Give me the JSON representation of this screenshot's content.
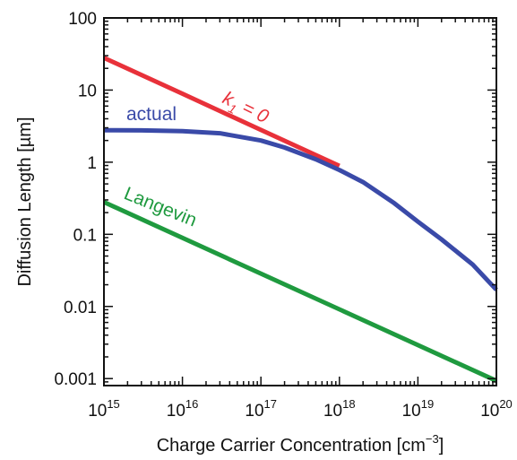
{
  "chart_data": {
    "type": "line",
    "xlabel": "Charge Carrier Concentration [cm",
    "xlabel_sup": "−3",
    "xlabel_end": "]",
    "ylabel": "Diffusion Length [µm]",
    "x_scale": "log",
    "y_scale": "log",
    "xlim": [
      1000000000000000.0,
      1e+20
    ],
    "ylim": [
      0.0008,
      100
    ],
    "grid": false,
    "x_ticks": [
      {
        "value": 1000000000000000.0,
        "base": "10",
        "exp": "15"
      },
      {
        "value": 1e+16,
        "base": "10",
        "exp": "16"
      },
      {
        "value": 1e+17,
        "base": "10",
        "exp": "17"
      },
      {
        "value": 1e+18,
        "base": "10",
        "exp": "18"
      },
      {
        "value": 1e+19,
        "base": "10",
        "exp": "19"
      },
      {
        "value": 1e+20,
        "base": "10",
        "exp": "20"
      }
    ],
    "y_ticks": [
      {
        "value": 100,
        "label": "100"
      },
      {
        "value": 10,
        "label": "10"
      },
      {
        "value": 1,
        "label": "1"
      },
      {
        "value": 0.1,
        "label": "0.1"
      },
      {
        "value": 0.01,
        "label": "0.01"
      },
      {
        "value": 0.001,
        "label": "0.001"
      }
    ],
    "series": [
      {
        "label_main": "k",
        "label_sub": "1",
        "label_rest": " = 0",
        "color": "#e8313a",
        "x": [
          1000000000000000.0,
          1e+16,
          1e+17,
          1e+18
        ],
        "y": [
          28,
          8.9,
          2.8,
          0.89
        ]
      },
      {
        "label_main": "actual",
        "color": "#3a4aa8",
        "x": [
          1000000000000000.0,
          3000000000000000.0,
          1e+16,
          3e+16,
          1e+17,
          2e+17,
          5e+17,
          1e+18,
          2e+18,
          5e+18,
          1e+19,
          2e+19,
          5e+19,
          1e+20
        ],
        "y": [
          2.78,
          2.76,
          2.7,
          2.52,
          2.0,
          1.6,
          1.1,
          0.78,
          0.53,
          0.27,
          0.15,
          0.085,
          0.038,
          0.017
        ]
      },
      {
        "label_main": "Langevin",
        "color": "#1f9a3f",
        "x": [
          1000000000000000.0,
          1e+20
        ],
        "y": [
          0.28,
          0.00093
        ]
      }
    ]
  }
}
